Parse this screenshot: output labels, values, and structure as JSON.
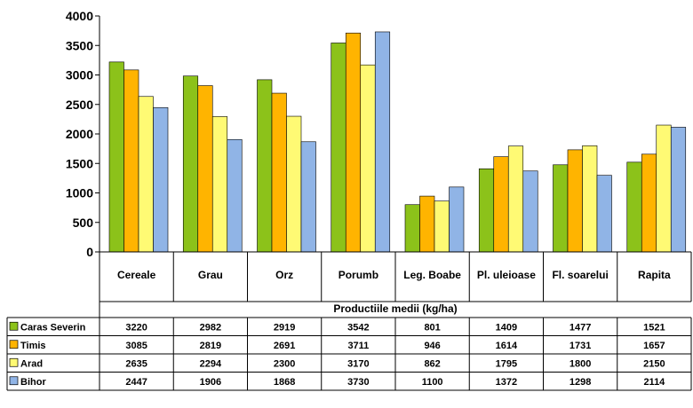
{
  "chart_data": {
    "type": "bar",
    "xlabel": "Productiile medii (kg/ha)",
    "ylim": [
      0,
      4000
    ],
    "yticks": [
      0,
      500,
      1000,
      1500,
      2000,
      2500,
      3000,
      3500,
      4000
    ],
    "categories": [
      "Cereale",
      "Grau",
      "Orz",
      "Porumb",
      "Leg. Boabe",
      "Pl. uleioase",
      "Fl. soarelui",
      "Rapita"
    ],
    "series": [
      {
        "name": "Caras Severin",
        "color": "#8CC21A",
        "values": [
          3220,
          2982,
          2919,
          3542,
          801,
          1409,
          1477,
          1521
        ]
      },
      {
        "name": "Timis",
        "color": "#FFB400",
        "values": [
          3085,
          2819,
          2691,
          3711,
          946,
          1614,
          1731,
          1657
        ]
      },
      {
        "name": "Arad",
        "color": "#FFFA74",
        "values": [
          2635,
          2294,
          2300,
          3170,
          862,
          1795,
          1800,
          2150
        ]
      },
      {
        "name": "Bihor",
        "color": "#90B4E6",
        "values": [
          2447,
          1906,
          1868,
          3730,
          1100,
          1372,
          1298,
          2114
        ]
      }
    ],
    "grid": false,
    "legend": "data-table"
  }
}
